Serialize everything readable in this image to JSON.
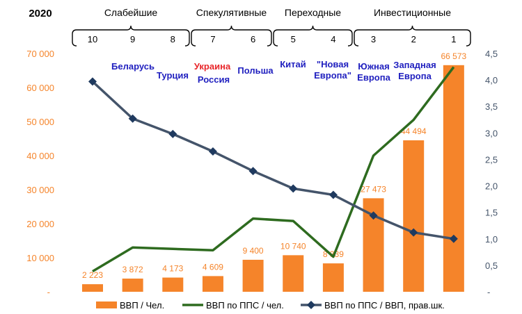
{
  "chart_data": {
    "type": "bar",
    "title": "2020",
    "groups": [
      {
        "label": "Слабейшие"
      },
      {
        "label": "Спекулятивные"
      },
      {
        "label": "Переходные"
      },
      {
        "label": "Инвестиционные"
      }
    ],
    "categories": [
      "10",
      "9",
      "8",
      "7",
      "6",
      "5",
      "4",
      "3",
      "2",
      "1"
    ],
    "country_labels": [
      {
        "text": "Беларусь",
        "color": "#1f1fbf"
      },
      {
        "text": "Турция",
        "color": "#1f1fbf"
      },
      {
        "text": "Украина",
        "color": "#e8262a"
      },
      {
        "text": "Россия",
        "color": "#1f1fbf"
      },
      {
        "text": "Польша",
        "color": "#1f1fbf"
      },
      {
        "text": "Китай",
        "color": "#1f1fbf"
      },
      {
        "text": "\"Новая",
        "color": "#1f1fbf"
      },
      {
        "text": "Европа\"",
        "color": "#1f1fbf"
      },
      {
        "text": "Южная",
        "color": "#1f1fbf"
      },
      {
        "text": "Европа",
        "color": "#1f1fbf"
      },
      {
        "text": "Западная",
        "color": "#1f1fbf"
      },
      {
        "text": "Европа",
        "color": "#1f1fbf"
      }
    ],
    "series": [
      {
        "name": "ВВП / Чел.",
        "kind": "bar",
        "axis": "left",
        "color": "#f5842a",
        "values": [
          2223,
          3872,
          4173,
          4609,
          9400,
          10740,
          8339,
          27473,
          44494,
          66573
        ],
        "data_labels": [
          "2 223",
          "3 872",
          "4 173",
          "4 609",
          "9 400",
          "10 740",
          "8 339",
          "27 473",
          "44 494",
          "66 573"
        ]
      },
      {
        "name": "ВВП по ППС / чел.",
        "kind": "line",
        "axis": "left",
        "color": "#2e6b1f",
        "values": [
          6000,
          13000,
          12600,
          12200,
          21500,
          20800,
          10300,
          40000,
          50500,
          66000
        ]
      },
      {
        "name": "ВВП по ППС / ВВП, прав.шк.",
        "kind": "line-markers",
        "axis": "right",
        "color": "#44546a",
        "values": [
          3.97,
          3.27,
          2.98,
          2.65,
          2.28,
          1.95,
          1.83,
          1.44,
          1.12,
          1.0
        ]
      }
    ],
    "y_left": {
      "range": [
        0,
        70000
      ],
      "ticks": [
        "-",
        "10 000",
        "20 000",
        "30 000",
        "40 000",
        "50 000",
        "60 000",
        "70 000"
      ],
      "color": "#f5842a"
    },
    "y_right": {
      "range": [
        0,
        4.5
      ],
      "ticks": [
        "-",
        "0,5",
        "1,0",
        "1,5",
        "2,0",
        "2,5",
        "3,0",
        "3,5",
        "4,0",
        "4,5"
      ],
      "color": "#44546a"
    },
    "grid": false,
    "legend_position": "bottom"
  }
}
